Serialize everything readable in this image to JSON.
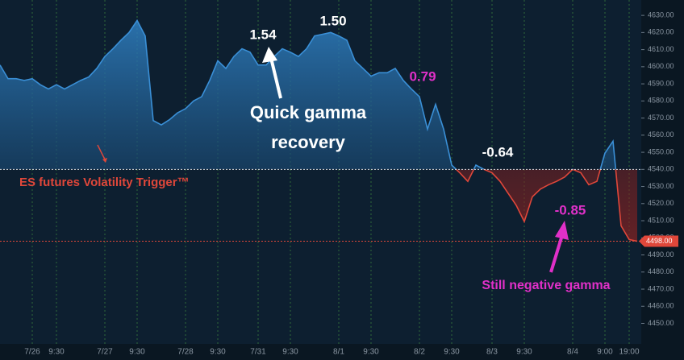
{
  "chart_data": {
    "type": "line",
    "categories": [
      null,
      null,
      null,
      null,
      "7/26",
      null,
      null,
      "9:30",
      null,
      null,
      null,
      null,
      null,
      "7/27",
      null,
      null,
      null,
      "9:30",
      null,
      null,
      null,
      null,
      null,
      "7/28",
      null,
      null,
      null,
      "9:30",
      null,
      null,
      null,
      null,
      "7/31",
      null,
      null,
      null,
      "9:30",
      null,
      null,
      null,
      null,
      null,
      "8/1",
      null,
      null,
      null,
      "9:30",
      null,
      null,
      null,
      null,
      null,
      "8/2",
      null,
      null,
      null,
      "9:30",
      null,
      null,
      null,
      null,
      "8/3",
      null,
      null,
      null,
      "9:30",
      null,
      null,
      null,
      null,
      null,
      "8/4",
      null,
      null,
      null,
      "9:00",
      null,
      null,
      "19:00",
      null
    ],
    "values": [
      4601,
      4593,
      4593,
      4592,
      4593,
      4589.5,
      4587,
      4589.5,
      4587,
      4589.5,
      4592,
      4594,
      4599,
      4606,
      4610.5,
      4615.5,
      4620,
      4627,
      4618,
      4568.5,
      4566,
      4569,
      4573,
      4575.5,
      4580,
      4582.5,
      4592,
      4603.5,
      4599,
      4606,
      4610.5,
      4608.5,
      4601,
      4601,
      4606,
      4610.5,
      4608.5,
      4606,
      4610.5,
      4618,
      4619,
      4620,
      4618,
      4615.5,
      4603.5,
      4599,
      4594.5,
      4596.5,
      4596.5,
      4599,
      4592,
      4587,
      4582.5,
      4563.5,
      4578,
      4563.5,
      4542.5,
      4538,
      4533,
      4542.5,
      4540,
      4538,
      4533,
      4526,
      4519,
      4509.5,
      4524,
      4528.5,
      4531,
      4533,
      4535.5,
      4540,
      4538,
      4531,
      4533,
      4549.5,
      4556.5,
      4507,
      4499,
      4498
    ],
    "color": "#3a8fd6",
    "below_color": "#e0473a",
    "ylim": [
      4438,
      4639
    ],
    "yticks": [
      {
        "value": 4450,
        "label": "4450.00"
      },
      {
        "value": 4460,
        "label": "4460.00"
      },
      {
        "value": 4470,
        "label": "4470.00"
      },
      {
        "value": 4480,
        "label": "4480.00"
      },
      {
        "value": 4490,
        "label": "4490.00"
      },
      {
        "value": 4500,
        "label": "4500.00"
      },
      {
        "value": 4510,
        "label": "4510.00"
      },
      {
        "value": 4520,
        "label": "4520.00"
      },
      {
        "value": 4530,
        "label": "4530.00"
      },
      {
        "value": 4540,
        "label": "4540.00"
      },
      {
        "value": 4550,
        "label": "4550.00"
      },
      {
        "value": 4560,
        "label": "4560.00"
      },
      {
        "value": 4570,
        "label": "4570.00"
      },
      {
        "value": 4580,
        "label": "4580.00"
      },
      {
        "value": 4590,
        "label": "4590.00"
      },
      {
        "value": 4600,
        "label": "4600.00"
      },
      {
        "value": 4610,
        "label": "4610.00"
      },
      {
        "value": 4620,
        "label": "4620.00"
      },
      {
        "value": 4630,
        "label": "4630.00"
      }
    ],
    "trigger": {
      "value": 4540,
      "label": "ES futures Volatility Trigger™"
    },
    "last_price": {
      "value": 4498,
      "label": "4498.00"
    },
    "annotations": [
      {
        "text": "1.54",
        "color": "#ffffff"
      },
      {
        "text": "1.50",
        "color": "#ffffff"
      },
      {
        "text": "0.79",
        "color": "#e030c8"
      },
      {
        "text": "-0.64",
        "color": "#ffffff"
      },
      {
        "text": "-0.85",
        "color": "#e030c8"
      },
      {
        "lines": [
          "Quick gamma",
          "recovery"
        ],
        "color": "#ffffff"
      },
      {
        "text": "Still negative gamma",
        "color": "#e030c8"
      }
    ]
  }
}
